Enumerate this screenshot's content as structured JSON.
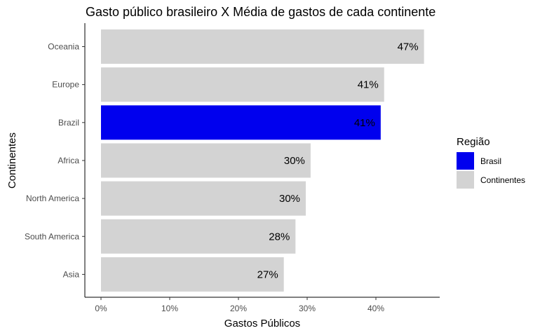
{
  "chart_data": {
    "type": "bar",
    "orientation": "horizontal",
    "title": "Gasto público brasileiro X Média de gastos de cada continente",
    "xlabel": "Gastos Públicos",
    "ylabel": "Continentes",
    "categories": [
      "Oceania",
      "Europe",
      "Brazil",
      "Africa",
      "North America",
      "South America",
      "Asia"
    ],
    "values": [
      47,
      41,
      41,
      30,
      30,
      28,
      27
    ],
    "bar_lengths": [
      47.0,
      41.2,
      40.7,
      30.5,
      29.8,
      28.3,
      26.6
    ],
    "groups": [
      "Continentes",
      "Continentes",
      "Brasil",
      "Continentes",
      "Continentes",
      "Continentes",
      "Continentes"
    ],
    "data_labels": [
      "47%",
      "41%",
      "41%",
      "30%",
      "30%",
      "28%",
      "27%"
    ],
    "x_ticks": [
      0,
      10,
      20,
      30,
      40
    ],
    "x_tick_labels": [
      "0%",
      "10%",
      "20%",
      "30%",
      "40%"
    ],
    "xlim": [
      0,
      50
    ],
    "grid": false,
    "legend": {
      "title": "Região",
      "position": "right",
      "entries": [
        {
          "name": "Brasil",
          "color": "#0000ee"
        },
        {
          "name": "Continentes",
          "color": "#d3d3d3"
        }
      ]
    },
    "colors": {
      "Brasil": "#0000ee",
      "Continentes": "#d3d3d3"
    }
  }
}
